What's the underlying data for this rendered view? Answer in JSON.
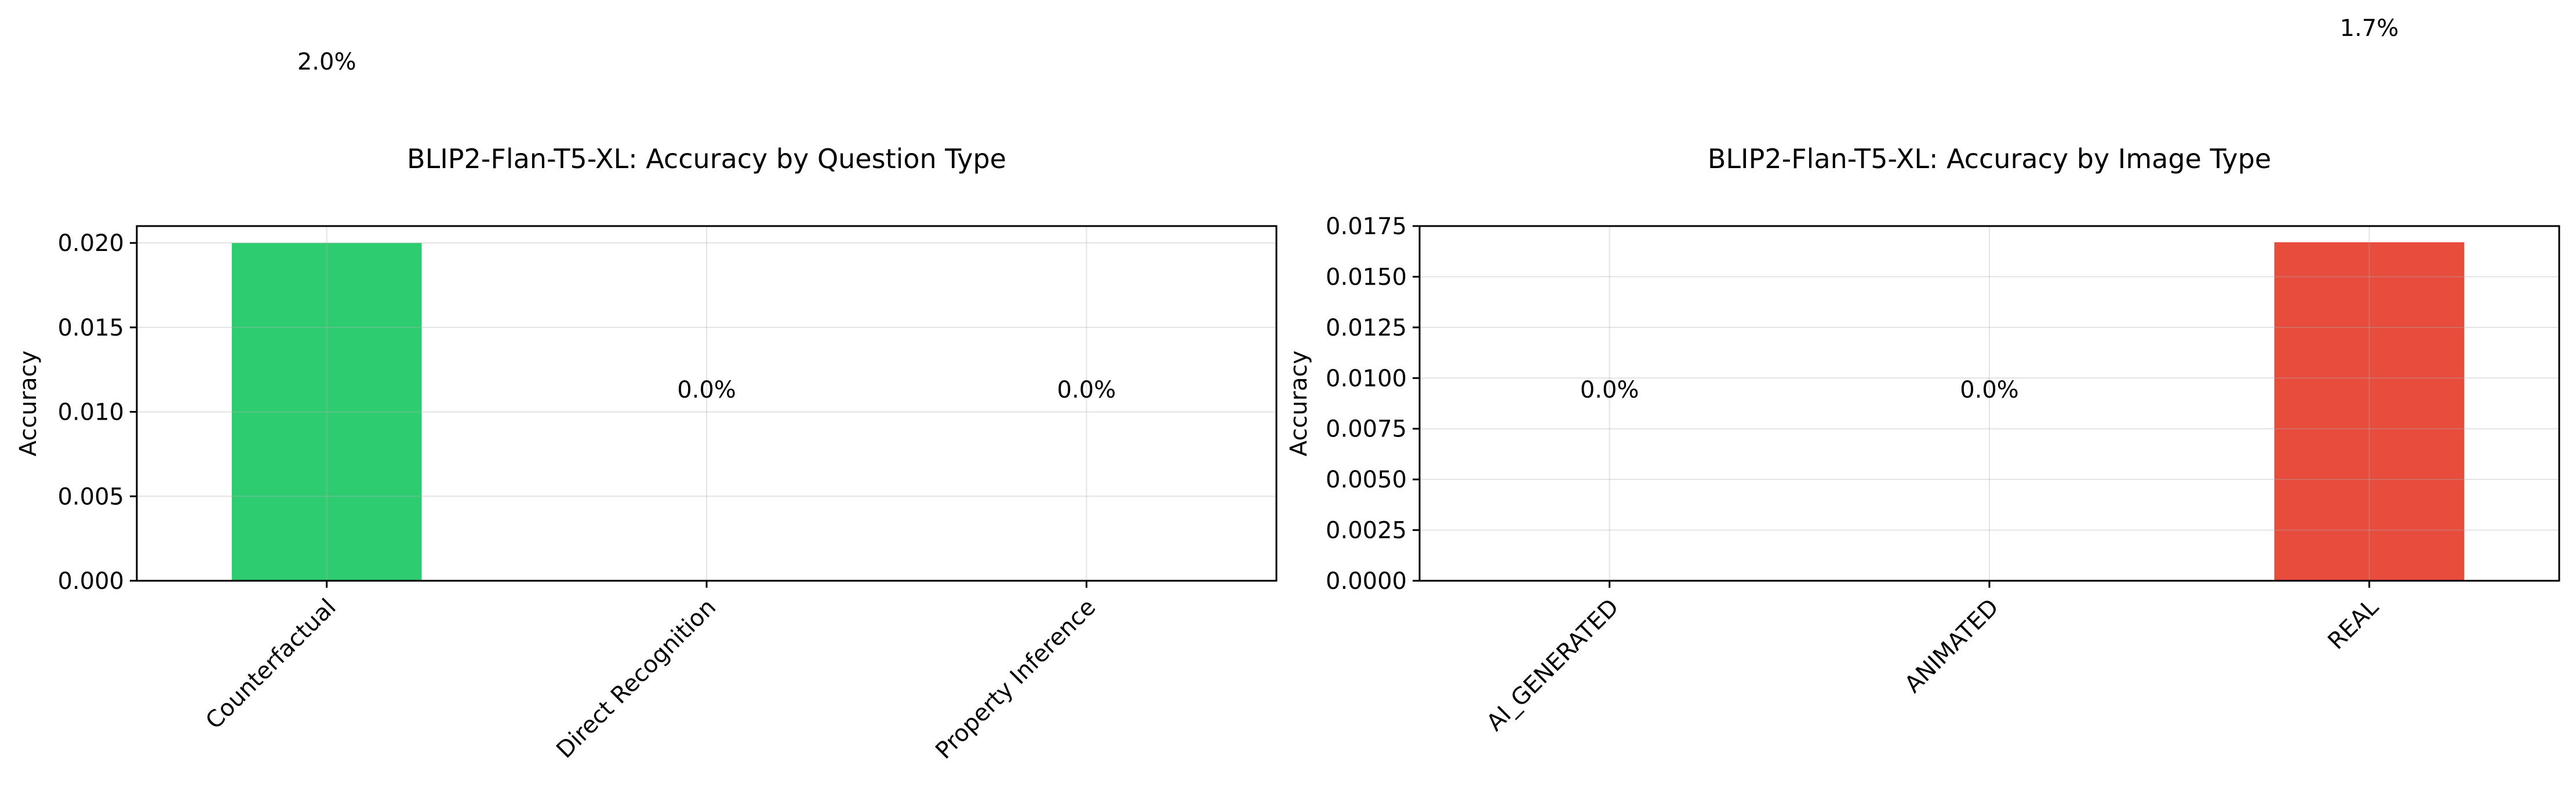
{
  "chart_data": [
    {
      "type": "bar",
      "title": "BLIP2-Flan-T5-XL: Accuracy by Question Type",
      "xlabel": "",
      "ylabel": "Accuracy",
      "categories": [
        "Counterfactual",
        "Direct Recognition",
        "Property Inference"
      ],
      "values": [
        0.02,
        0.0,
        0.0
      ],
      "value_labels": [
        "2.0%",
        "0.0%",
        "0.0%"
      ],
      "colors": [
        "#2ecc71",
        "#2ecc71",
        "#2ecc71"
      ],
      "ylim": [
        0,
        0.021
      ],
      "yticks": [
        0.0,
        0.005,
        0.01,
        0.015,
        0.02
      ],
      "ytick_labels": [
        "0.000",
        "0.005",
        "0.010",
        "0.015",
        "0.020"
      ],
      "grid": true,
      "legend": "none"
    },
    {
      "type": "bar",
      "title": "BLIP2-Flan-T5-XL: Accuracy by Image Type",
      "xlabel": "",
      "ylabel": "Accuracy",
      "categories": [
        "AI_GENERATED",
        "ANIMATED",
        "REAL"
      ],
      "values": [
        0.0,
        0.0,
        0.0167
      ],
      "value_labels": [
        "0.0%",
        "0.0%",
        "1.7%"
      ],
      "colors": [
        "#e74c3c",
        "#e74c3c",
        "#e74c3c"
      ],
      "ylim": [
        0,
        0.0175
      ],
      "yticks": [
        0.0,
        0.0025,
        0.005,
        0.0075,
        0.01,
        0.0125,
        0.015,
        0.0175
      ],
      "ytick_labels": [
        "0.0000",
        "0.0025",
        "0.0050",
        "0.0075",
        "0.0100",
        "0.0125",
        "0.0150",
        "0.0175"
      ],
      "grid": true,
      "legend": "none"
    }
  ]
}
